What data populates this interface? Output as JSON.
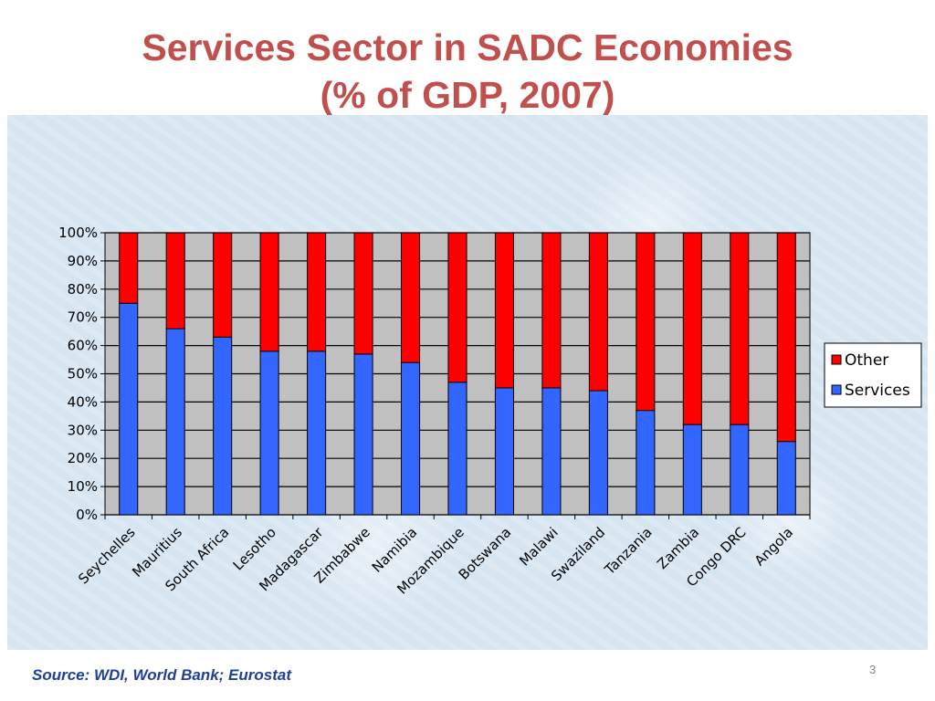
{
  "slide": {
    "title_line1": "Services Sector in SADC Economies",
    "title_line2": "(% of GDP, 2007)",
    "source": "Source: WDI, World Bank; Eurostat",
    "page_number": "3"
  },
  "colors": {
    "title": "#c0504d",
    "services": "#3366ff",
    "other": "#ff0000",
    "plot_background": "#c0c0c0",
    "source_text": "#1f3f99"
  },
  "chart_data": {
    "type": "bar",
    "stacked": true,
    "percent_stacked": true,
    "categories": [
      "Seychelles",
      "Mauritius",
      "South Africa",
      "Lesotho",
      "Madagascar",
      "Zimbabwe",
      "Namibia",
      "Mozambique",
      "Botswana",
      "Malawi",
      "Swaziland",
      "Tanzania",
      "Zambia",
      "Congo DRC",
      "Angola"
    ],
    "series": [
      {
        "name": "Services",
        "color": "#3366ff",
        "values": [
          75,
          66,
          63,
          58,
          58,
          57,
          54,
          47,
          45,
          45,
          44,
          37,
          32,
          32,
          26
        ]
      },
      {
        "name": "Other",
        "color": "#ff0000",
        "values": [
          25,
          34,
          37,
          42,
          42,
          43,
          46,
          53,
          55,
          55,
          56,
          63,
          68,
          68,
          74
        ]
      }
    ],
    "y_ticks": [
      "0%",
      "10%",
      "20%",
      "30%",
      "40%",
      "50%",
      "60%",
      "70%",
      "80%",
      "90%",
      "100%"
    ],
    "ylim": [
      0,
      100
    ],
    "grid": true,
    "legend_position": "right",
    "legend": [
      {
        "label": "Other",
        "color": "#ff0000"
      },
      {
        "label": "Services",
        "color": "#3366ff"
      }
    ]
  }
}
